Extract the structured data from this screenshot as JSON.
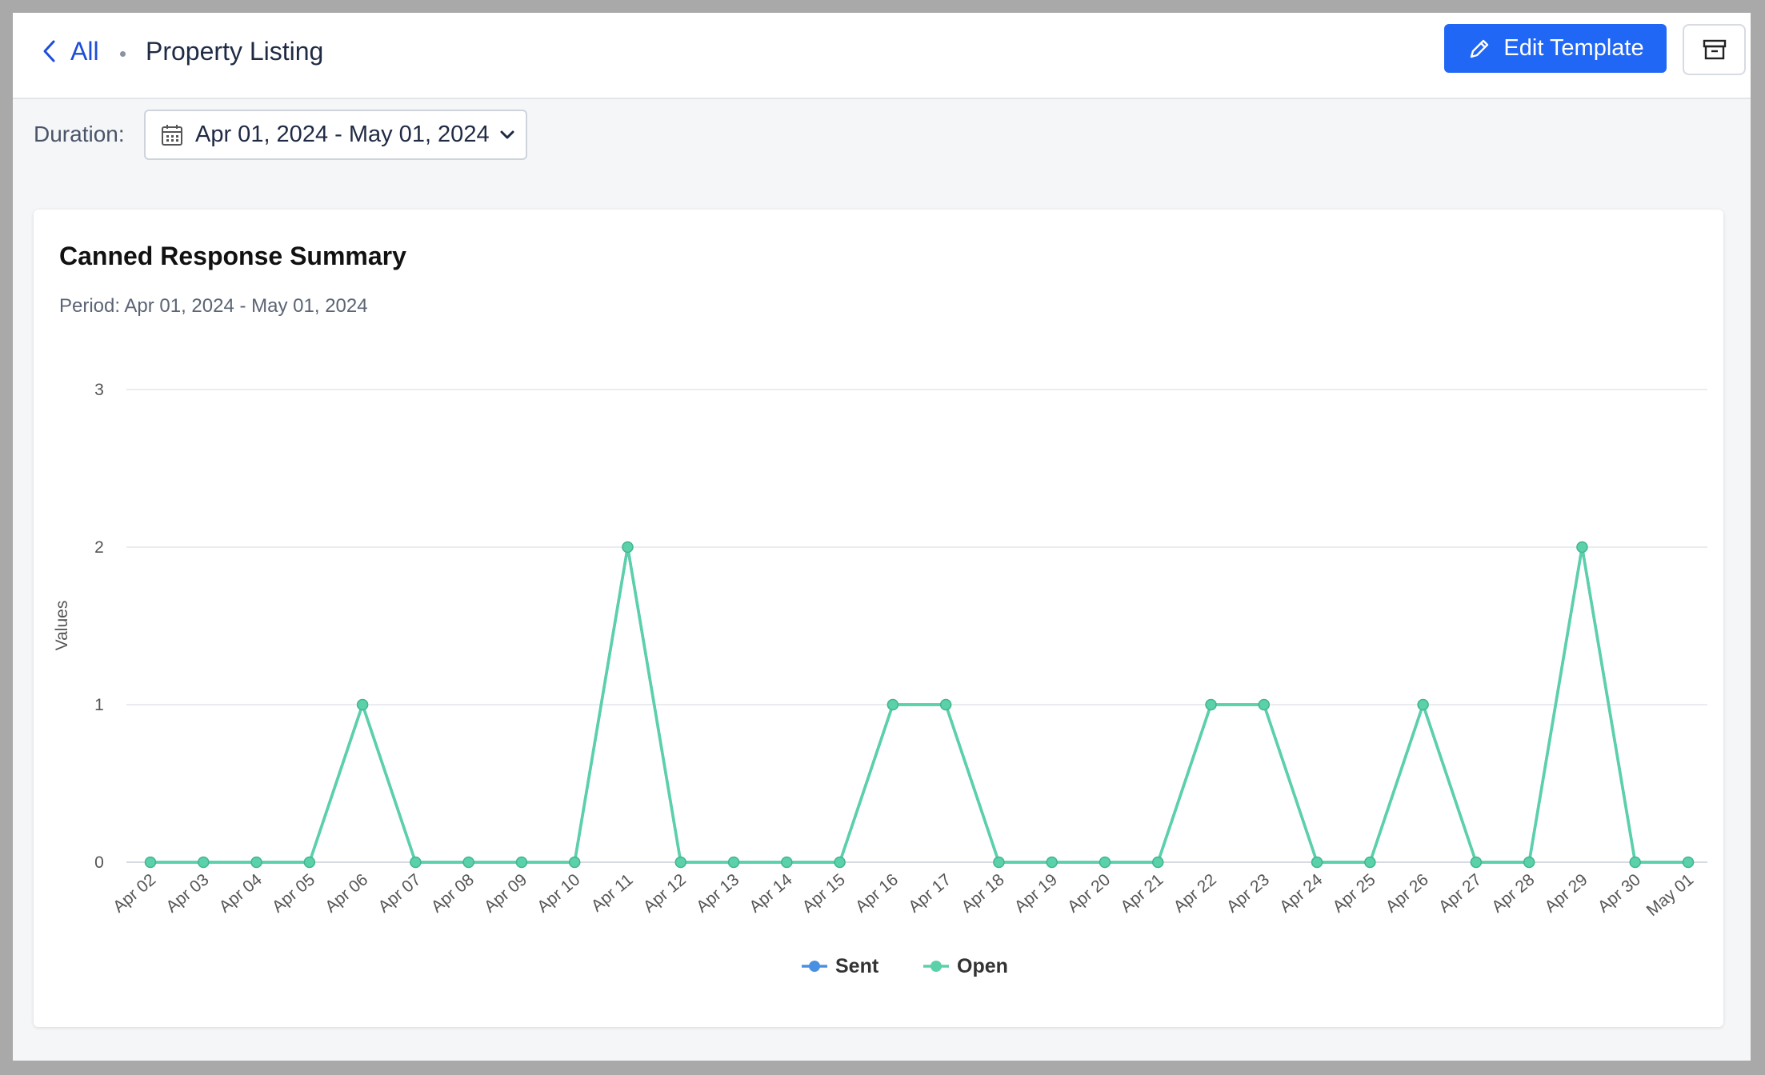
{
  "header": {
    "back_label": "All",
    "title": "Property Listing",
    "edit_label": "Edit Template"
  },
  "filters": {
    "duration_label": "Duration:",
    "date_range": "Apr 01, 2024 - May 01, 2024"
  },
  "colors": {
    "primary": "#2067f5",
    "sent": "#4a90e2",
    "open": "#5ad1a8"
  },
  "chart_data": {
    "type": "line",
    "title": "Canned Response Summary",
    "subtitle": "Period: Apr 01, 2024 - May 01, 2024",
    "xlabel": "",
    "ylabel": "Values",
    "ylim": [
      0,
      3
    ],
    "yticks": [
      "0",
      "1",
      "2",
      "3"
    ],
    "grid": true,
    "legend_position": "bottom",
    "categories": [
      "Apr 02",
      "Apr 03",
      "Apr 04",
      "Apr 05",
      "Apr 06",
      "Apr 07",
      "Apr 08",
      "Apr 09",
      "Apr 10",
      "Apr 11",
      "Apr 12",
      "Apr 13",
      "Apr 14",
      "Apr 15",
      "Apr 16",
      "Apr 17",
      "Apr 18",
      "Apr 19",
      "Apr 20",
      "Apr 21",
      "Apr 22",
      "Apr 23",
      "Apr 24",
      "Apr 25",
      "Apr 26",
      "Apr 27",
      "Apr 28",
      "Apr 29",
      "Apr 30",
      "May 01"
    ],
    "series": [
      {
        "name": "Sent",
        "color": "#4a90e2",
        "values": [
          0,
          0,
          0,
          0,
          1,
          0,
          0,
          0,
          0,
          2,
          0,
          0,
          0,
          0,
          1,
          1,
          0,
          0,
          0,
          0,
          1,
          1,
          0,
          0,
          1,
          0,
          0,
          2,
          0,
          0
        ]
      },
      {
        "name": "Open",
        "color": "#5ad1a8",
        "values": [
          0,
          0,
          0,
          0,
          1,
          0,
          0,
          0,
          0,
          2,
          0,
          0,
          0,
          0,
          1,
          1,
          0,
          0,
          0,
          0,
          1,
          1,
          0,
          0,
          1,
          0,
          0,
          2,
          0,
          0
        ]
      }
    ]
  }
}
